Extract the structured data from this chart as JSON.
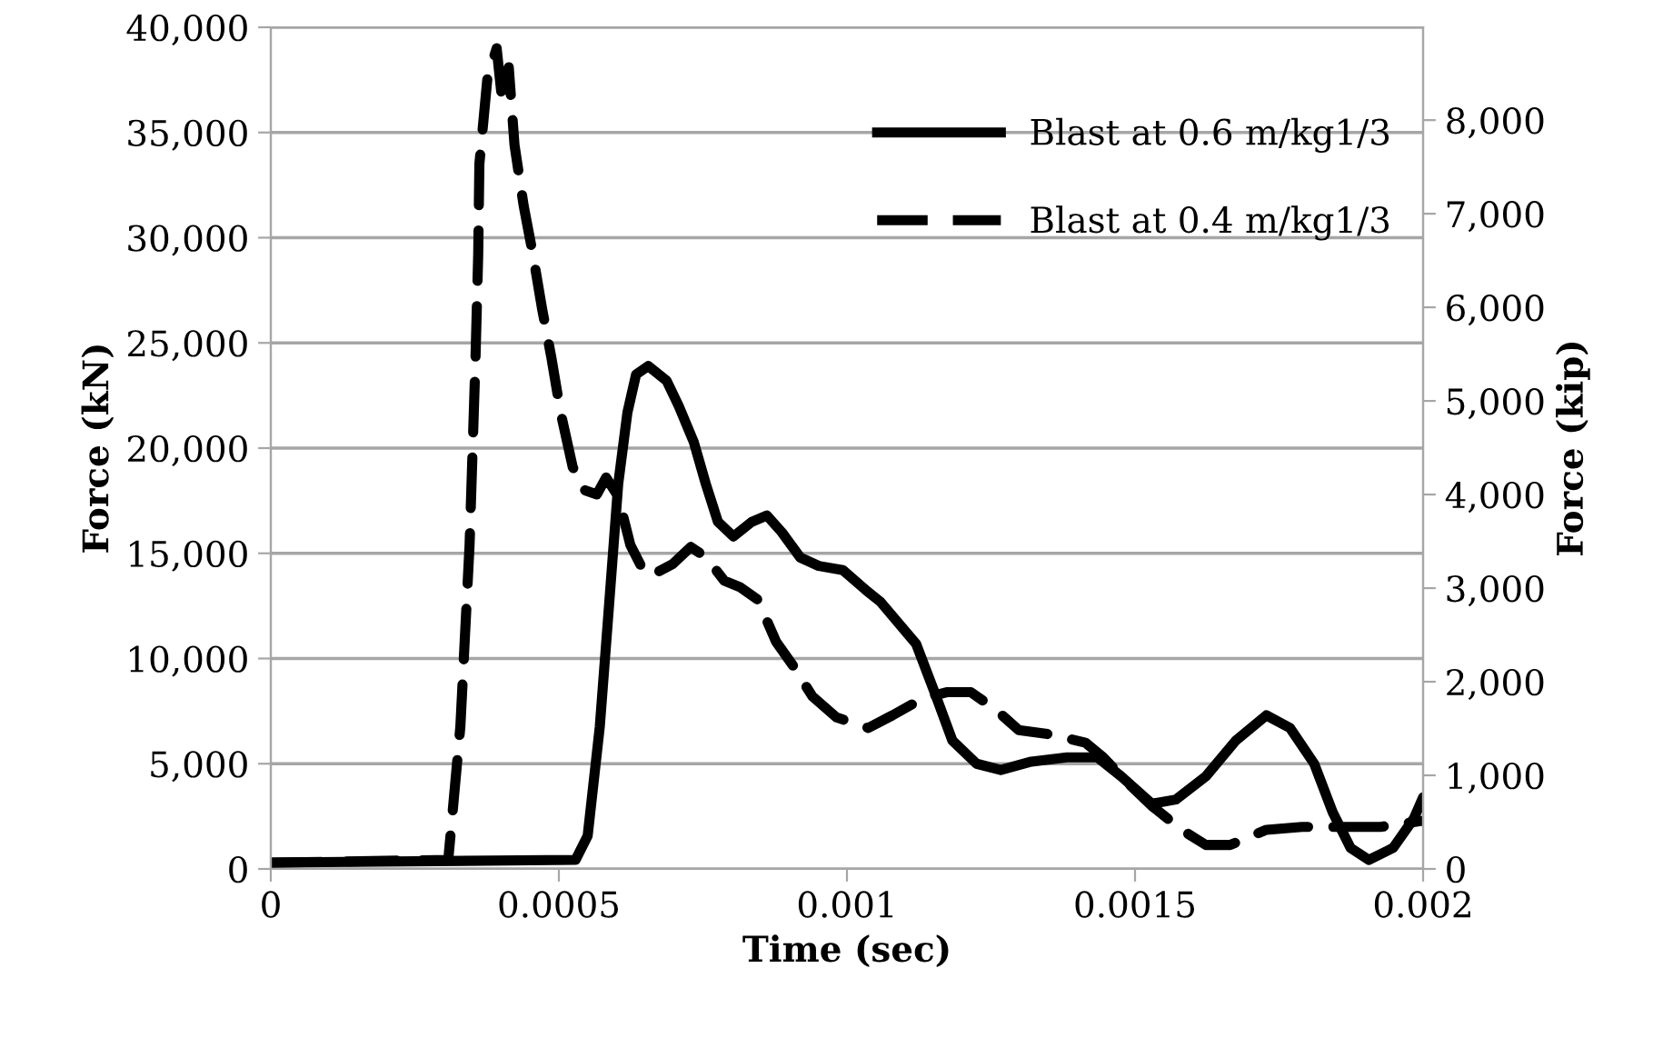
{
  "chart_data": {
    "type": "line",
    "xlabel": "Time (sec)",
    "ylabel": "Force (kN)",
    "y2label": "Force (kip)",
    "xlim": [
      0,
      0.002
    ],
    "xticks": [
      0,
      {
        "value": 0.0005,
        "label": "0.0005"
      },
      {
        "value": 0.001,
        "label": "0.001"
      },
      {
        "value": 0.0015,
        "label": "0.0015"
      },
      {
        "value": 0.002,
        "label": "0.002"
      }
    ],
    "ylim": [
      0,
      40000
    ],
    "yticks": [
      0,
      {
        "value": 5000,
        "label": "5,000"
      },
      {
        "value": 10000,
        "label": "10,000"
      },
      {
        "value": 15000,
        "label": "15,000"
      },
      {
        "value": 20000,
        "label": "20,000"
      },
      {
        "value": 25000,
        "label": "25,000"
      },
      {
        "value": 30000,
        "label": "30,000"
      },
      {
        "value": 35000,
        "label": "35,000"
      },
      {
        "value": 40000,
        "label": "40,000"
      }
    ],
    "y2lim": [
      0,
      8992
    ],
    "y2ticks": [
      0,
      {
        "value": 1000,
        "label": "1,000"
      },
      {
        "value": 2000,
        "label": "2,000"
      },
      {
        "value": 3000,
        "label": "3,000"
      },
      {
        "value": 4000,
        "label": "4,000"
      },
      {
        "value": 5000,
        "label": "5,000"
      },
      {
        "value": 6000,
        "label": "6,000"
      },
      {
        "value": 7000,
        "label": "7,000"
      },
      {
        "value": 8000,
        "label": "8,000"
      }
    ],
    "grid": "y",
    "legend": "top right",
    "series": [
      {
        "name": "Blast at 0.6 m/kg1/3",
        "color": "#000000",
        "line_style": "solid",
        "x": [
          0,
          0.000529,
          0.00055,
          0.000571,
          0.000587,
          0.000603,
          0.000619,
          0.000634,
          0.000655,
          0.000687,
          0.000708,
          0.000734,
          0.000755,
          0.000776,
          0.000803,
          0.000835,
          0.000861,
          0.000887,
          0.000919,
          0.000951,
          0.000993,
          0.001035,
          0.001058,
          0.00112,
          0.001152,
          0.001183,
          0.001225,
          0.001267,
          0.00132,
          0.001382,
          0.001435,
          0.001476,
          0.001529,
          0.001571,
          0.001623,
          0.001675,
          0.001728,
          0.001769,
          0.001811,
          0.001843,
          0.001874,
          0.001906,
          0.001948,
          0.001984,
          0.002
        ],
        "values": [
          300,
          430,
          1580,
          6760,
          12500,
          18300,
          21700,
          23500,
          23900,
          23200,
          22000,
          20300,
          18300,
          16500,
          15800,
          16500,
          16800,
          16000,
          14800,
          14400,
          14200,
          13200,
          12700,
          10700,
          8400,
          6100,
          5000,
          4700,
          5100,
          5300,
          5300,
          4400,
          3100,
          3300,
          4400,
          6100,
          7300,
          6700,
          5000,
          2700,
          1000,
          430,
          1000,
          2400,
          3400
        ]
      },
      {
        "name": "Blast at 0.4 m/kg1/3",
        "color": "#000000",
        "line_style": "dashed",
        "x": [
          0,
          0.000308,
          0.000329,
          0.000345,
          0.000355,
          0.00036,
          0.000362,
          0.000376,
          0.000392,
          0.000402,
          0.000413,
          0.000423,
          0.000439,
          0.000455,
          0.000471,
          0.000487,
          0.000503,
          0.000524,
          0.000545,
          0.000566,
          0.000582,
          0.000603,
          0.000624,
          0.00065,
          0.000671,
          0.000698,
          0.000729,
          0.000756,
          0.000787,
          0.000814,
          0.000845,
          0.000877,
          0.000908,
          0.00094,
          0.000982,
          0.001037,
          0.001079,
          0.001131,
          0.001173,
          0.001215,
          0.001257,
          0.001298,
          0.001351,
          0.001414,
          0.001445,
          0.001487,
          0.001529,
          0.001581,
          0.001623,
          0.001665,
          0.001728,
          0.00179,
          0.001853,
          0.001926,
          0.002
        ],
        "values": [
          300,
          430,
          6760,
          15400,
          24000,
          29200,
          33500,
          37600,
          39000,
          36400,
          38100,
          34400,
          31500,
          29200,
          26600,
          24300,
          21700,
          19100,
          18000,
          17800,
          18600,
          17700,
          15400,
          14000,
          14100,
          14500,
          15300,
          14800,
          13700,
          13400,
          12800,
          10800,
          9600,
          8200,
          7200,
          6700,
          7300,
          8100,
          8400,
          8400,
          7600,
          6600,
          6400,
          6000,
          5300,
          4100,
          3000,
          1860,
          1140,
          1140,
          1860,
          2000,
          2000,
          2000,
          2290
        ]
      }
    ]
  }
}
